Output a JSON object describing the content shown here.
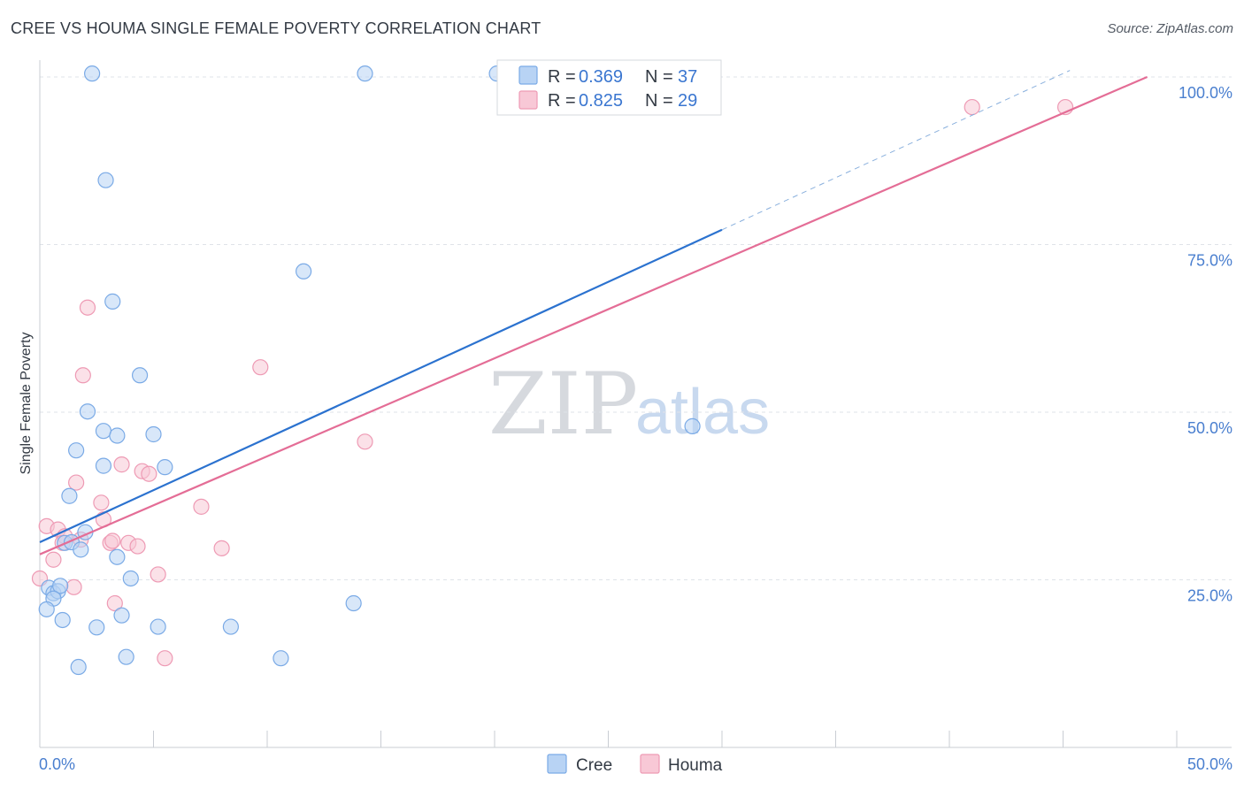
{
  "title": "CREE VS HOUMA SINGLE FEMALE POVERTY CORRELATION CHART",
  "source": "Source: ZipAtlas.com",
  "watermark": {
    "zip": "ZIP",
    "atlas": "atlas"
  },
  "colors": {
    "cree_fill": "#b8d3f4",
    "cree_stroke": "#7aaae6",
    "cree_line": "#2b72cf",
    "houma_fill": "#f8c8d6",
    "houma_stroke": "#ee9ab4",
    "houma_line": "#e46d96",
    "tick_text": "#4a7fcf",
    "grid": "#dfe3e8"
  },
  "legend": {
    "cree": {
      "r_label": "R = ",
      "r_value": "0.369",
      "n_label": "N = ",
      "n_value": "37"
    },
    "houma": {
      "r_label": "R = ",
      "r_value": "0.825",
      "n_label": "N = ",
      "n_value": "29"
    }
  },
  "chart_data": {
    "type": "scatter",
    "title": "CREE VS HOUMA SINGLE FEMALE POVERTY CORRELATION CHART",
    "xlabel": "",
    "ylabel": "Single Female Poverty",
    "xlim": [
      0,
      50
    ],
    "ylim": [
      0,
      102.5
    ],
    "x_tick_labels": [
      "0.0%",
      "50.0%"
    ],
    "y_ticks": [
      25,
      50,
      75,
      100
    ],
    "y_tick_labels": [
      "25.0%",
      "50.0%",
      "75.0%",
      "100.0%"
    ],
    "grid": true,
    "legend_position": "bottom",
    "series": [
      {
        "name": "Cree",
        "points": [
          [
            2.3,
            100.5
          ],
          [
            14.3,
            100.5
          ],
          [
            20.1,
            100.5
          ],
          [
            2.9,
            84.6
          ],
          [
            11.6,
            71.0
          ],
          [
            3.2,
            66.5
          ],
          [
            4.4,
            55.5
          ],
          [
            2.1,
            50.1
          ],
          [
            2.8,
            47.2
          ],
          [
            3.4,
            46.5
          ],
          [
            5.0,
            46.7
          ],
          [
            1.6,
            44.3
          ],
          [
            2.8,
            42.0
          ],
          [
            5.5,
            41.8
          ],
          [
            1.3,
            37.5
          ],
          [
            2.0,
            32.1
          ],
          [
            1.1,
            30.5
          ],
          [
            1.4,
            30.6
          ],
          [
            1.8,
            29.5
          ],
          [
            3.4,
            28.4
          ],
          [
            4.0,
            25.2
          ],
          [
            0.4,
            23.8
          ],
          [
            0.6,
            23.0
          ],
          [
            0.8,
            23.3
          ],
          [
            0.9,
            24.1
          ],
          [
            0.6,
            22.2
          ],
          [
            0.3,
            20.6
          ],
          [
            3.6,
            19.7
          ],
          [
            1.0,
            19.0
          ],
          [
            2.5,
            17.9
          ],
          [
            5.2,
            18.0
          ],
          [
            8.4,
            18.0
          ],
          [
            13.8,
            21.5
          ],
          [
            3.8,
            13.5
          ],
          [
            10.6,
            13.3
          ],
          [
            1.7,
            12.0
          ],
          [
            28.7,
            47.9
          ]
        ]
      },
      {
        "name": "Houma",
        "points": [
          [
            41.0,
            95.5
          ],
          [
            45.1,
            95.5
          ],
          [
            2.1,
            65.6
          ],
          [
            9.7,
            56.7
          ],
          [
            1.9,
            55.5
          ],
          [
            14.3,
            45.6
          ],
          [
            3.6,
            42.2
          ],
          [
            4.5,
            41.2
          ],
          [
            4.8,
            40.8
          ],
          [
            1.6,
            39.5
          ],
          [
            2.7,
            36.5
          ],
          [
            7.1,
            35.9
          ],
          [
            2.8,
            34.0
          ],
          [
            0.3,
            33.0
          ],
          [
            0.8,
            32.5
          ],
          [
            1.1,
            31.5
          ],
          [
            1.8,
            31.0
          ],
          [
            1.0,
            30.5
          ],
          [
            3.1,
            30.5
          ],
          [
            3.9,
            30.5
          ],
          [
            4.3,
            30.0
          ],
          [
            8.0,
            29.7
          ],
          [
            0.6,
            28.0
          ],
          [
            5.2,
            25.8
          ],
          [
            0.0,
            25.2
          ],
          [
            1.5,
            23.9
          ],
          [
            3.3,
            21.5
          ],
          [
            5.5,
            13.3
          ],
          [
            3.2,
            30.8
          ]
        ]
      }
    ],
    "trend_lines": [
      {
        "name": "Cree",
        "x": [
          0,
          30
        ],
        "y": [
          30.6,
          77.2
        ],
        "dashed_extension_to_x": 45.3
      },
      {
        "name": "Houma",
        "x": [
          0,
          48.7
        ],
        "y": [
          28.8,
          100
        ]
      }
    ]
  }
}
